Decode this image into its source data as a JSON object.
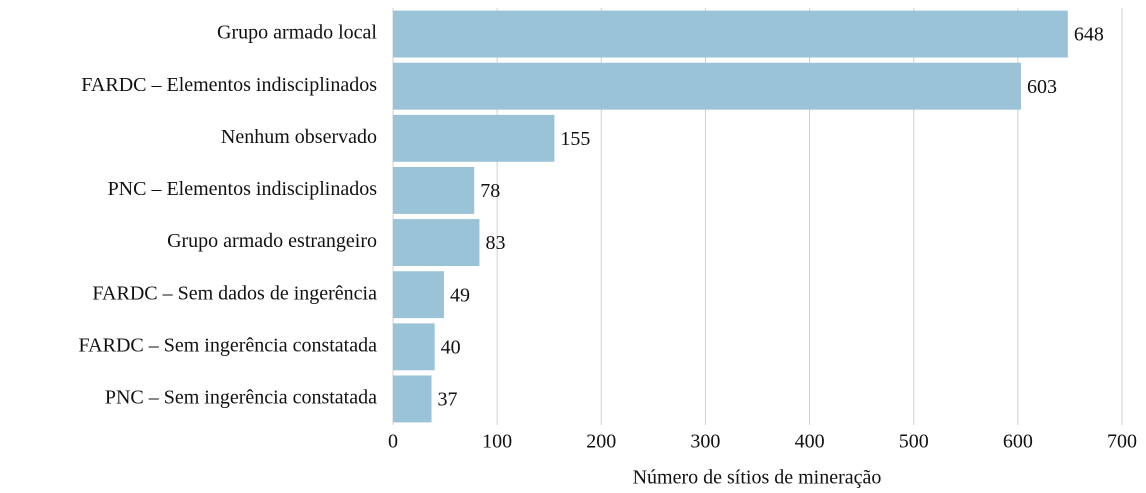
{
  "chart_data": {
    "type": "bar",
    "orientation": "horizontal",
    "x_label": "Número de sítios de mineração",
    "categories": [
      "Grupo armado local",
      "FARDC – Elementos indisciplinados",
      "Nenhum observado",
      "PNC – Elementos indisciplinados",
      "Grupo armado estrangeiro",
      "FARDC – Sem dados de ingerência",
      "FARDC – Sem ingerência constatada",
      "PNC – Sem ingerência constatada"
    ],
    "values": [
      648,
      603,
      155,
      78,
      83,
      49,
      40,
      37
    ],
    "color": "#9ac3d8",
    "xlim": [
      0,
      700
    ],
    "xticks": [
      0,
      100,
      200,
      300,
      400,
      500,
      600,
      700
    ],
    "grid": true
  }
}
